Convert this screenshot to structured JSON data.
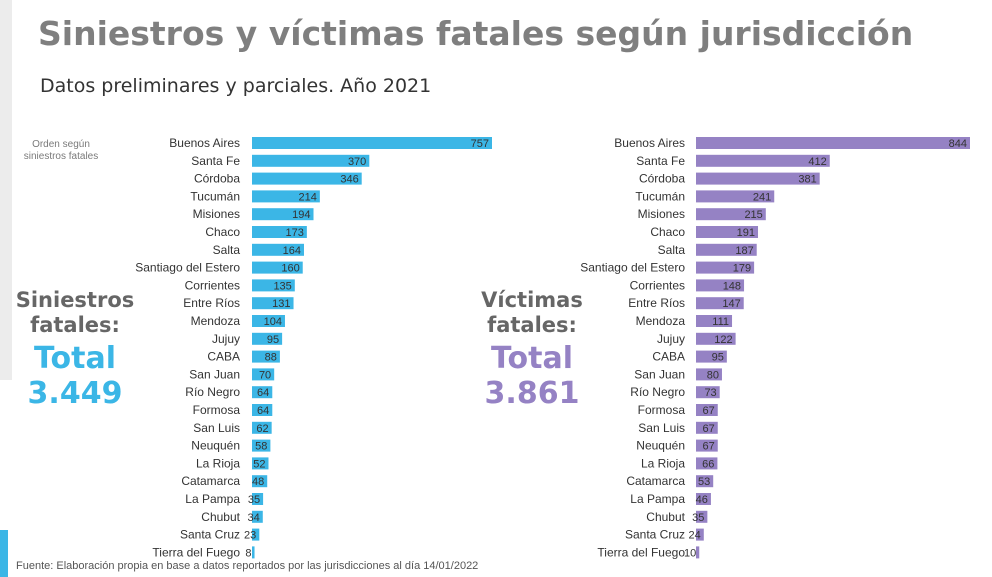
{
  "title": "Siniestros y víctimas fatales según jurisdicción",
  "subtitle": "Datos preliminares y parciales. Año 2021",
  "order_note": "Orden según siniestros fatales",
  "source": "Fuente: Elaboración propia en base a datos reportados por las jurisdicciones al día 14/01/2022",
  "totals": {
    "left": {
      "label": "Siniestros fatales:",
      "word": "Total",
      "value": "3.449"
    },
    "right": {
      "label": "Víctimas fatales:",
      "word": "Total",
      "value": "3.861"
    }
  },
  "colors": {
    "siniestros": "#3bb6e6",
    "victimas": "#9582c4",
    "title": "#7f7f7f"
  },
  "chart_data": [
    {
      "type": "bar",
      "orientation": "horizontal",
      "title": "",
      "categories": [
        "Buenos Aires",
        "Santa Fe",
        "Córdoba",
        "Tucumán",
        "Misiones",
        "Chaco",
        "Salta",
        "Santiago del Estero",
        "Corrientes",
        "Entre Ríos",
        "Mendoza",
        "Jujuy",
        "CABA",
        "San Juan",
        "Río Negro",
        "Formosa",
        "San Luis",
        "Neuquén",
        "La Rioja",
        "Catamarca",
        "La Pampa",
        "Chubut",
        "Santa Cruz",
        "Tierra del Fuego"
      ],
      "values": [
        757,
        370,
        346,
        214,
        194,
        173,
        164,
        160,
        135,
        131,
        104,
        95,
        88,
        70,
        64,
        64,
        62,
        58,
        52,
        48,
        35,
        34,
        23,
        8
      ],
      "color": "#3bb6e6"
    },
    {
      "type": "bar",
      "orientation": "horizontal",
      "title": "",
      "categories": [
        "Buenos Aires",
        "Santa Fe",
        "Córdoba",
        "Tucumán",
        "Misiones",
        "Chaco",
        "Salta",
        "Santiago del Estero",
        "Corrientes",
        "Entre Ríos",
        "Mendoza",
        "Jujuy",
        "CABA",
        "San Juan",
        "Río Negro",
        "Formosa",
        "San Luis",
        "Neuquén",
        "La Rioja",
        "Catamarca",
        "La Pampa",
        "Chubut",
        "Santa Cruz",
        "Tierra del Fuego"
      ],
      "values": [
        844,
        412,
        381,
        241,
        215,
        191,
        187,
        179,
        148,
        147,
        111,
        122,
        95,
        80,
        73,
        67,
        67,
        67,
        66,
        53,
        46,
        35,
        24,
        10
      ],
      "color": "#9582c4"
    }
  ]
}
